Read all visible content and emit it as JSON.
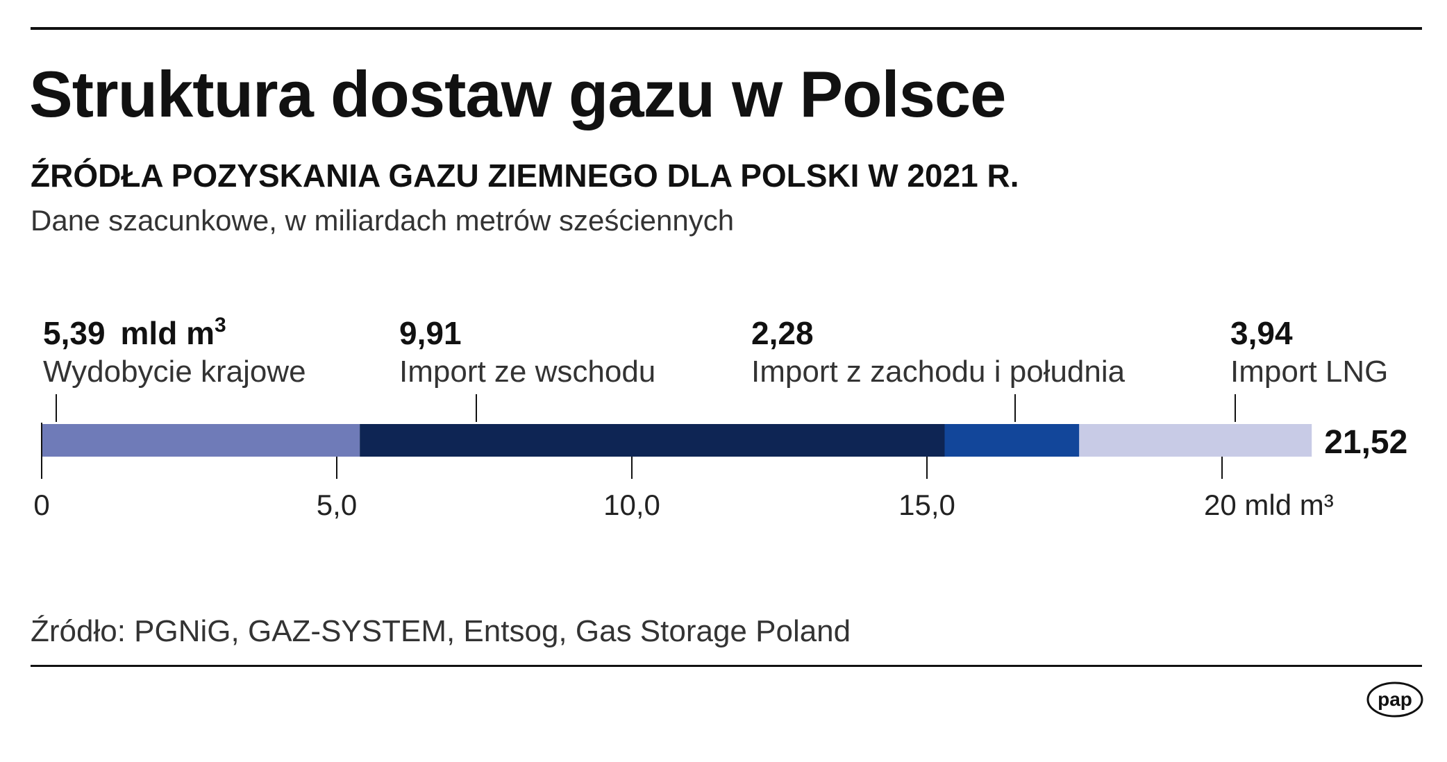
{
  "header": {
    "title": "Struktura dostaw gazu w Polsce",
    "subtitle": "ŹRÓDŁA POZYSKANIA GAZU ZIEMNEGO DLA POLSKI W 2021 R.",
    "note": "Dane szacunkowe, w miliardach metrów sześciennych"
  },
  "footer": {
    "source": "Źródło: PGNiG, GAZ-SYSTEM, Entsog, Gas Storage Poland",
    "logo_text": "pap"
  },
  "chart_data": {
    "type": "bar",
    "orientation": "horizontal-stacked",
    "series": [
      {
        "name": "Wydobycie krajowe",
        "value": 5.39,
        "value_label": "5,39",
        "unit_label": "mld m",
        "unit_superscript": "3",
        "color": "#6f7bb8"
      },
      {
        "name": "Import ze wschodu",
        "value": 9.91,
        "value_label": "9,91",
        "color": "#0e2554"
      },
      {
        "name": "Import z zachodu i południa",
        "value": 2.28,
        "value_label": "2,28",
        "color": "#12469a"
      },
      {
        "name": "Import LNG",
        "value": 3.94,
        "value_label": "3,94",
        "color": "#c8cbe6"
      }
    ],
    "total": 21.52,
    "total_label": "21,52",
    "xlim": [
      0,
      21.52
    ],
    "ticks": [
      {
        "value": 0,
        "label": "0"
      },
      {
        "value": 5,
        "label": "5,0"
      },
      {
        "value": 10,
        "label": "10,0"
      },
      {
        "value": 15,
        "label": "15,0"
      },
      {
        "value": 20,
        "label": "20 mld m³"
      }
    ],
    "grid": false,
    "legend": "labels above bar"
  }
}
